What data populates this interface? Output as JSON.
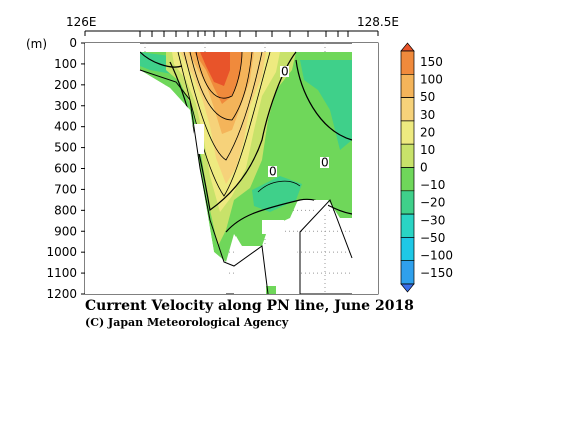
{
  "chart_data": {
    "type": "heatmap",
    "title": "Current Velocity along PN line, June 2018",
    "credit": "(C) Japan Meteorological Agency",
    "y_unit": "(m)",
    "x_range_labels": [
      "126E",
      "128.5E"
    ],
    "y_ticks": [
      "0",
      "100",
      "200",
      "300",
      "400",
      "500",
      "600",
      "700",
      "800",
      "900",
      "1000",
      "1100",
      "1200"
    ],
    "ylim": [
      0,
      1200
    ],
    "colorbar": {
      "levels": [
        "150",
        "100",
        "50",
        "30",
        "20",
        "10",
        "0",
        "−10",
        "−20",
        "−30",
        "−50",
        "−100",
        "−150"
      ],
      "colors": [
        "#e8542a",
        "#f08a3c",
        "#f4b45a",
        "#f6d27a",
        "#eeea80",
        "#c8e26a",
        "#6fd75a",
        "#3fd08a",
        "#2ad4c4",
        "#1ec8e6",
        "#2fa0ec",
        "#3a6ee8"
      ]
    },
    "contour_labels": [
      "0",
      "0",
      "0"
    ],
    "grid": "dotted"
  }
}
